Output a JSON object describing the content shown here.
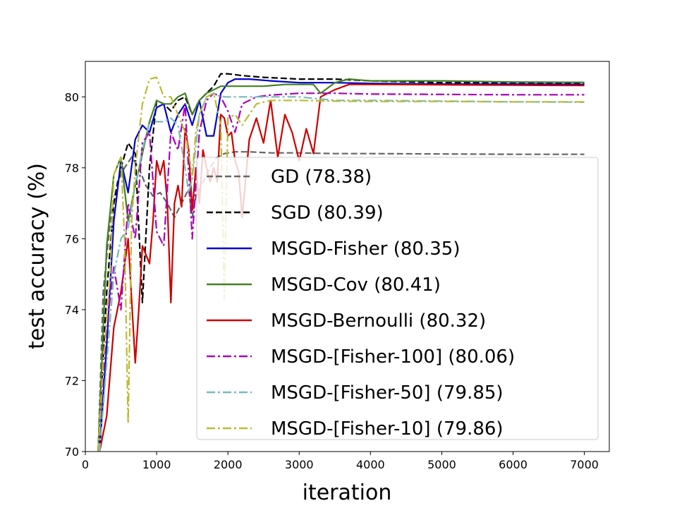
{
  "chart_data": {
    "type": "line",
    "title": "",
    "xlabel": "iteration",
    "ylabel": "test accuracy (%)",
    "xlim": [
      0,
      7350
    ],
    "ylim": [
      70,
      81
    ],
    "xticks": [
      0,
      1000,
      2000,
      3000,
      4000,
      5000,
      6000,
      7000
    ],
    "yticks": [
      70,
      72,
      74,
      76,
      78,
      80
    ],
    "grid": false,
    "legend_position": "lower-right",
    "series": [
      {
        "name": "GD (78.38)",
        "color": "#666666",
        "dash": "dashed",
        "x": [
          180,
          250,
          350,
          450,
          550,
          650,
          750,
          850,
          950,
          1050,
          1150,
          1250,
          1350,
          1450,
          1500,
          1550,
          1650,
          1750,
          1850,
          1950,
          2100,
          2300,
          2600,
          3000,
          3500,
          4000,
          5000,
          6000,
          7000
        ],
        "y": [
          70.0,
          74.5,
          76.5,
          77.6,
          78.0,
          78.3,
          78.0,
          77.5,
          77.2,
          77.3,
          77.0,
          76.6,
          77.0,
          77.4,
          76.6,
          77.2,
          77.6,
          78.0,
          78.3,
          78.4,
          78.45,
          78.45,
          78.42,
          78.42,
          78.4,
          78.4,
          78.39,
          78.38,
          78.38
        ]
      },
      {
        "name": "SGD (80.39)",
        "color": "#000000",
        "dash": "dashed",
        "x": [
          180,
          300,
          400,
          500,
          600,
          700,
          800,
          900,
          1000,
          1100,
          1200,
          1300,
          1400,
          1500,
          1600,
          1700,
          1800,
          1900,
          2000,
          2200,
          2500,
          3000,
          3500,
          4000,
          5000,
          6000,
          7000
        ],
        "y": [
          70.0,
          74.5,
          77.0,
          78.0,
          78.7,
          78.4,
          74.2,
          78.0,
          79.9,
          79.8,
          79.6,
          79.9,
          80.0,
          79.5,
          79.9,
          80.1,
          80.3,
          80.65,
          80.65,
          80.6,
          80.55,
          80.5,
          80.5,
          80.45,
          80.4,
          80.4,
          80.39
        ]
      },
      {
        "name": "MSGD-Fisher (80.35)",
        "color": "#0000cc",
        "dash": "solid",
        "x": [
          200,
          300,
          400,
          500,
          600,
          700,
          800,
          900,
          1000,
          1100,
          1200,
          1300,
          1400,
          1500,
          1600,
          1700,
          1800,
          1900,
          2000,
          2100,
          2300,
          2600,
          3000,
          3500,
          4000,
          5000,
          6000,
          7000
        ],
        "y": [
          70.0,
          73.0,
          76.5,
          78.2,
          77.3,
          78.8,
          79.2,
          79.0,
          79.7,
          79.8,
          79.0,
          79.5,
          79.8,
          79.2,
          79.9,
          78.9,
          78.9,
          80.1,
          80.4,
          80.5,
          80.5,
          80.45,
          80.4,
          80.4,
          80.38,
          80.36,
          80.36,
          80.35
        ]
      },
      {
        "name": "MSGD-Cov (80.41)",
        "color": "#448022",
        "dash": "solid",
        "x": [
          180,
          300,
          400,
          500,
          600,
          700,
          800,
          900,
          1000,
          1100,
          1200,
          1300,
          1400,
          1500,
          1600,
          1700,
          1800,
          1900,
          2000,
          2200,
          2500,
          2800,
          3000,
          3200,
          3300,
          3500,
          3700,
          4000,
          5000,
          6000,
          7000
        ],
        "y": [
          70.0,
          75.8,
          77.8,
          78.3,
          76.5,
          77.5,
          78.4,
          79.3,
          79.9,
          79.8,
          79.8,
          80.0,
          80.1,
          79.5,
          79.9,
          80.1,
          80.2,
          80.3,
          80.3,
          80.3,
          80.3,
          80.35,
          80.35,
          80.35,
          80.1,
          80.4,
          80.5,
          80.45,
          80.45,
          80.42,
          80.41
        ]
      },
      {
        "name": "MSGD-Bernoulli (80.32)",
        "color": "#cc0000",
        "dash": "solid",
        "x": [
          200,
          300,
          400,
          500,
          600,
          700,
          750,
          800,
          900,
          950,
          1000,
          1050,
          1100,
          1150,
          1200,
          1250,
          1300,
          1350,
          1400,
          1450,
          1500,
          1550,
          1600,
          1650,
          1700,
          1750,
          1800,
          1850,
          1900,
          1950,
          2000,
          2050,
          2100,
          2150,
          2200,
          2300,
          2400,
          2500,
          2600,
          2700,
          2800,
          2900,
          3000,
          3100,
          3200,
          3300,
          3400,
          3500,
          3700,
          4000,
          5000,
          6000,
          7000
        ],
        "y": [
          70.0,
          71.0,
          73.5,
          74.5,
          76.0,
          72.5,
          74.0,
          75.8,
          75.3,
          76.5,
          78.2,
          77.8,
          78.2,
          77.0,
          74.2,
          77.0,
          77.5,
          76.9,
          79.1,
          78.5,
          76.8,
          78.0,
          77.0,
          78.5,
          78.0,
          77.6,
          78.0,
          77.6,
          79.5,
          79.4,
          78.9,
          79.0,
          78.2,
          77.9,
          76.6,
          78.8,
          79.4,
          78.7,
          79.9,
          78.3,
          79.5,
          79.0,
          78.2,
          79.1,
          78.4,
          80.0,
          80.1,
          80.2,
          80.35,
          80.35,
          80.34,
          80.33,
          80.32
        ]
      },
      {
        "name": "MSGD-[Fisher-100] (80.06)",
        "color": "#aa00bb",
        "dash": "dashdot",
        "x": [
          180,
          300,
          400,
          500,
          600,
          700,
          800,
          900,
          1000,
          1100,
          1200,
          1300,
          1400,
          1500,
          1600,
          1700,
          1800,
          1900,
          2000,
          2100,
          2200,
          2300,
          2400,
          2600,
          3000,
          3500,
          4000,
          5000,
          6000,
          7000
        ],
        "y": [
          70.0,
          73.5,
          75.2,
          74.0,
          77.0,
          76.0,
          78.7,
          79.0,
          76.2,
          75.8,
          79.0,
          78.5,
          79.8,
          76.0,
          79.0,
          79.9,
          80.1,
          80.0,
          79.6,
          79.0,
          79.8,
          79.9,
          80.0,
          80.05,
          80.1,
          80.1,
          80.08,
          80.07,
          80.06,
          80.06
        ]
      },
      {
        "name": "MSGD-[Fisher-50] (79.85)",
        "color": "#77bbbb",
        "dash": "dashdot",
        "x": [
          200,
          300,
          400,
          500,
          600,
          700,
          800,
          900,
          1000,
          1100,
          1200,
          1300,
          1400,
          1450,
          1500,
          1600,
          1700,
          1800,
          1900,
          2000,
          2200,
          2500,
          3000,
          3500,
          4000,
          5000,
          6000,
          7000
        ],
        "y": [
          70.0,
          72.5,
          75.0,
          76.0,
          76.3,
          77.5,
          78.5,
          79.3,
          79.3,
          79.3,
          79.4,
          79.2,
          78.0,
          77.3,
          77.7,
          79.5,
          80.0,
          80.1,
          80.0,
          80.0,
          80.0,
          80.0,
          80.0,
          79.9,
          79.9,
          79.88,
          79.86,
          79.85
        ]
      },
      {
        "name": "MSGD-[Fisher-10] (79.86)",
        "color": "#bbbb33",
        "dash": "dashdot",
        "x": [
          180,
          250,
          350,
          400,
          500,
          550,
          600,
          650,
          700,
          800,
          900,
          1000,
          1100,
          1200,
          1300,
          1400,
          1500,
          1550,
          1600,
          1700,
          1800,
          1900,
          1950,
          2000,
          2100,
          2200,
          2300,
          2400,
          2600,
          3000,
          3500,
          4000,
          5000,
          6000,
          7000
        ],
        "y": [
          70.0,
          72.5,
          75.0,
          77.8,
          78.3,
          76.0,
          70.8,
          76.5,
          78.0,
          79.8,
          80.5,
          80.55,
          80.0,
          80.0,
          79.5,
          79.0,
          77.8,
          79.0,
          79.5,
          80.0,
          80.1,
          79.2,
          74.3,
          79.4,
          79.5,
          79.2,
          79.5,
          79.8,
          79.9,
          79.9,
          79.88,
          79.87,
          79.87,
          79.86,
          79.86
        ]
      }
    ]
  }
}
